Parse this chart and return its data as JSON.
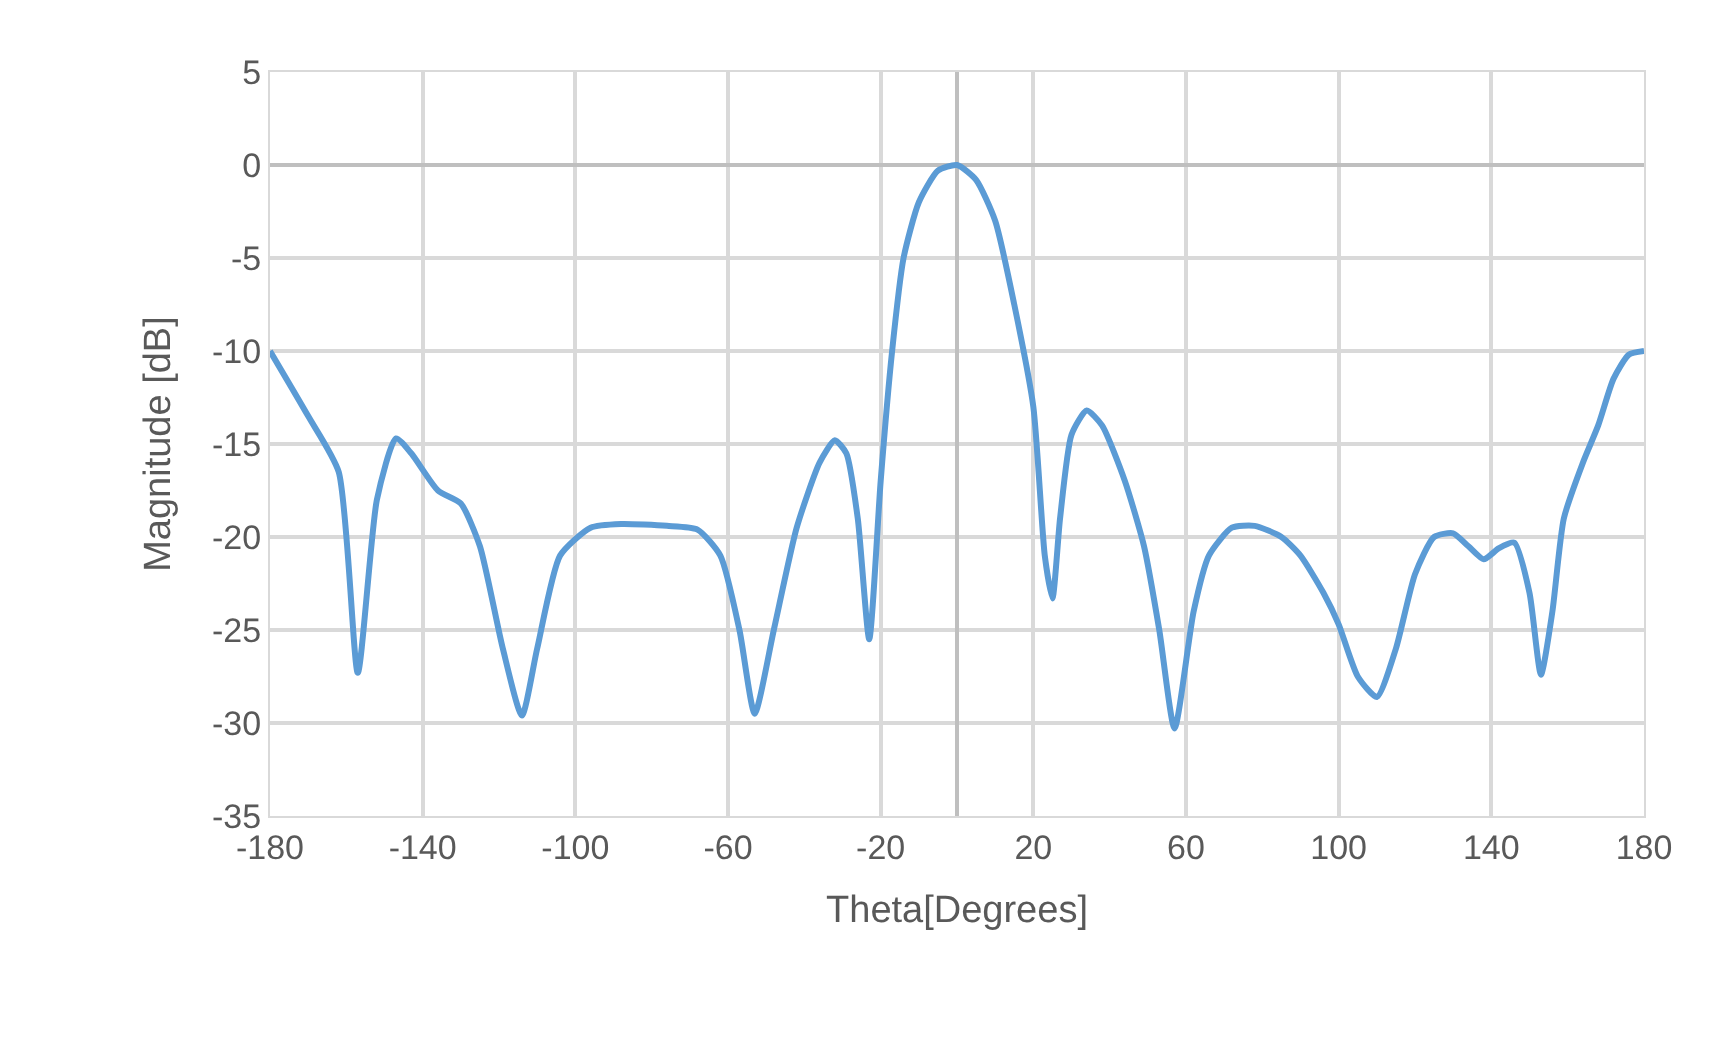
{
  "chart_data": {
    "type": "line",
    "xlabel": "Theta[Degrees]",
    "ylabel": "Magnitude [dB]",
    "xlim": [
      -180,
      180
    ],
    "xticks": [
      -180,
      -140,
      -100,
      -60,
      -20,
      20,
      60,
      100,
      140,
      180
    ],
    "ylim": [
      -35,
      5
    ],
    "yticks": [
      -35,
      -30,
      -25,
      -20,
      -15,
      -10,
      -5,
      0,
      5
    ],
    "grid": true,
    "legend": false,
    "marker": "none",
    "line_style": "solid",
    "series": [
      {
        "color": "#5b9bd5",
        "x": [
          -180,
          -170,
          -162,
          -157,
          -152,
          -147,
          -143,
          -136,
          -130,
          -125,
          -119,
          -114,
          -110,
          -104,
          -96,
          -88,
          -76,
          -68,
          -62,
          -57,
          -53,
          -48,
          -42,
          -36,
          -32,
          -29,
          -26,
          -23,
          -20,
          -17,
          -14,
          -10,
          -5,
          0,
          5,
          10,
          15,
          20,
          23,
          25,
          27,
          30,
          34,
          38,
          44,
          49,
          53,
          57,
          62,
          66,
          72,
          78,
          85,
          90,
          96,
          100,
          105,
          110,
          115,
          120,
          125,
          130,
          134,
          138,
          142,
          146,
          150,
          153,
          156,
          159,
          164,
          168,
          172,
          176,
          180
        ],
        "values": [
          -10,
          -13.5,
          -16.5,
          -27.3,
          -18,
          -14.7,
          -15.5,
          -17.5,
          -18.2,
          -20.5,
          -26,
          -29.6,
          -26,
          -21,
          -19.5,
          -19.3,
          -19.4,
          -19.6,
          -21,
          -25,
          -29.5,
          -25,
          -19.5,
          -16,
          -14.8,
          -15.5,
          -19,
          -25.5,
          -17,
          -10,
          -5,
          -2,
          -0.3,
          0,
          -0.8,
          -3,
          -7.5,
          -13,
          -21,
          -23.3,
          -19,
          -14.5,
          -13.2,
          -14,
          -17,
          -20.5,
          -25,
          -30.3,
          -24,
          -21,
          -19.5,
          -19.4,
          -20,
          -21,
          -23,
          -24.7,
          -27.5,
          -28.6,
          -26,
          -22,
          -20,
          -19.8,
          -20.5,
          -21.2,
          -20.6,
          -20.3,
          -23,
          -27.4,
          -24,
          -19,
          -16,
          -14,
          -11.5,
          -10.2,
          -10
        ]
      }
    ]
  }
}
